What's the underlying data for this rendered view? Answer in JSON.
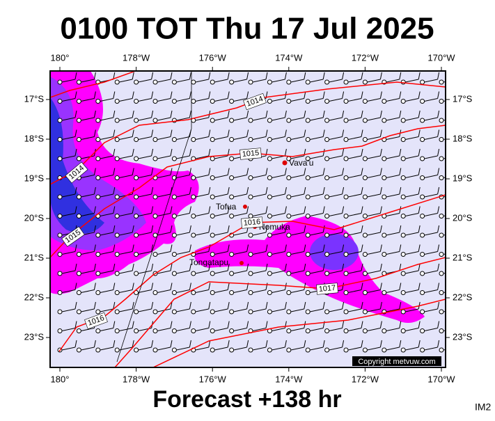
{
  "header": {
    "title": "0100 TOT Thu 17 Jul 2025"
  },
  "longitude_labels": [
    "180°",
    "178°W",
    "176°W",
    "174°W",
    "172°W",
    "170°W"
  ],
  "latitude_labels": [
    "17°S",
    "18°S",
    "19°S",
    "20°S",
    "21°S",
    "22°S",
    "23°S"
  ],
  "isobar_labels": [
    "1014",
    "1015",
    "1014",
    "1015",
    "1016",
    "1016",
    "1017"
  ],
  "places": [
    "Vava'u",
    "Tofua",
    "Nomuka",
    "Tongatapu"
  ],
  "credit": "Copyright metvuw.com",
  "footer": {
    "forecast": "Forecast +138 hr",
    "code": "IM2"
  }
}
